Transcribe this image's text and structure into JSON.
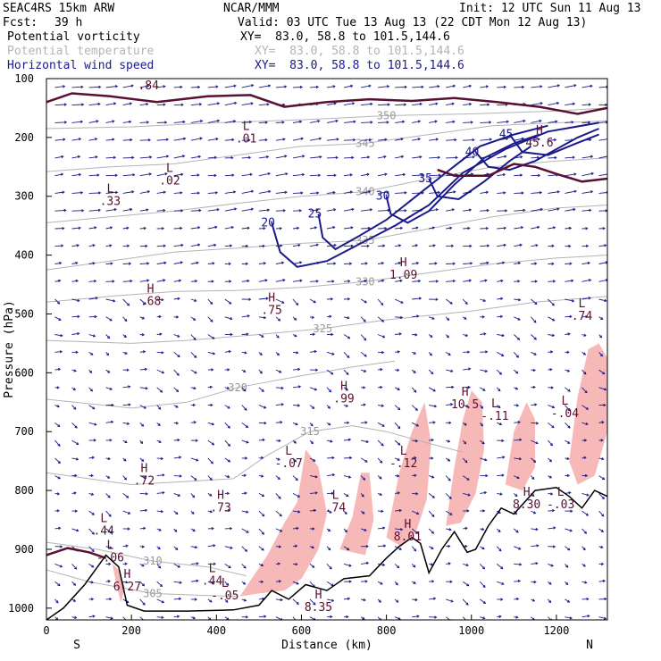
{
  "header": {
    "model": "SEAC4RS 15km ARW",
    "center": "NCAR/MMM",
    "init": "Init: 12 UTC Sun 11 Aug 13",
    "fcst_label": "Fcst:",
    "fcst_value": "39 h",
    "valid": "Valid: 03 UTC Tue 13 Aug 13 (22 CDT Mon 12 Aug 13)",
    "fields": [
      {
        "name": "Potential vorticity",
        "xy": "XY=  83.0, 58.8 to 101.5,144.6",
        "color": "#000000"
      },
      {
        "name": "Potential temperature",
        "xy": "XY=  83.0, 58.8 to 101.5,144.6",
        "color": "#b4b4b4"
      },
      {
        "name": "Horizontal wind speed",
        "xy": "XY=  83.0, 58.8 to 101.5,144.6",
        "color": "#1a1a8c"
      }
    ]
  },
  "chart_data": {
    "type": "cross-section",
    "xlabel": "Distance (km)",
    "ylabel": "Pressure (hPa)",
    "xlim": [
      0,
      1320
    ],
    "ylim": [
      1020,
      100
    ],
    "x_ticks": [
      "0",
      "200",
      "400",
      "600",
      "800",
      "1000",
      "1200"
    ],
    "y_ticks": [
      "100",
      "200",
      "300",
      "400",
      "500",
      "600",
      "700",
      "800",
      "900",
      "1000"
    ],
    "end_labels": {
      "left": "S",
      "right": "N"
    },
    "colors": {
      "wind": "#1a1a8c",
      "theta": "#b4b4b4",
      "pv_fill": "#f7b8b8",
      "pv_contour": "#5a1030",
      "terrain": "#000000"
    },
    "wind_speed_contours": [
      {
        "value": 20,
        "points": [
          [
            530,
            345
          ],
          [
            550,
            395
          ],
          [
            590,
            420
          ],
          [
            660,
            410
          ],
          [
            740,
            380
          ],
          [
            820,
            350
          ],
          [
            900,
            315
          ],
          [
            980,
            260
          ],
          [
            1080,
            220
          ],
          [
            1180,
            190
          ],
          [
            1300,
            175
          ]
        ]
      },
      {
        "value": 25,
        "points": [
          [
            640,
            330
          ],
          [
            650,
            370
          ],
          [
            680,
            390
          ],
          [
            730,
            370
          ],
          [
            800,
            340
          ],
          [
            870,
            300
          ],
          [
            940,
            260
          ],
          [
            1020,
            215
          ],
          [
            1100,
            195
          ],
          [
            1180,
            180
          ]
        ]
      },
      {
        "value": 30,
        "points": [
          [
            800,
            300
          ],
          [
            810,
            330
          ],
          [
            850,
            345
          ],
          [
            900,
            325
          ],
          [
            960,
            280
          ],
          [
            1030,
            235
          ],
          [
            1100,
            210
          ],
          [
            1160,
            195
          ]
        ]
      },
      {
        "value": 35,
        "points": [
          [
            900,
            270
          ],
          [
            920,
            300
          ],
          [
            970,
            305
          ],
          [
            1030,
            275
          ],
          [
            1090,
            240
          ],
          [
            1140,
            215
          ]
        ]
      },
      {
        "value": 40,
        "points": [
          [
            1010,
            225
          ],
          [
            1040,
            250
          ],
          [
            1090,
            255
          ],
          [
            1150,
            240
          ],
          [
            1200,
            220
          ],
          [
            1250,
            200
          ],
          [
            1300,
            185
          ]
        ]
      },
      {
        "value": 45,
        "points": [
          [
            1090,
            195
          ],
          [
            1120,
            225
          ],
          [
            1180,
            230
          ],
          [
            1240,
            212
          ],
          [
            1300,
            195
          ]
        ]
      }
    ],
    "theta_contours": [
      {
        "value": 305,
        "points": [
          [
            0,
            935
          ],
          [
            100,
            955
          ],
          [
            250,
            975
          ],
          [
            350,
            978
          ],
          [
            450,
            980
          ]
        ]
      },
      {
        "value": 310,
        "points": [
          [
            0,
            888
          ],
          [
            120,
            900
          ],
          [
            250,
            920
          ],
          [
            380,
            930
          ],
          [
            470,
            945
          ]
        ]
      },
      {
        "value": 315,
        "points": [
          [
            0,
            770
          ],
          [
            200,
            790
          ],
          [
            320,
            785
          ],
          [
            440,
            780
          ],
          [
            520,
            740
          ],
          [
            620,
            700
          ],
          [
            720,
            690
          ],
          [
            800,
            700
          ],
          [
            900,
            720
          ],
          [
            980,
            735
          ]
        ]
      },
      {
        "value": 320,
        "points": [
          [
            0,
            645
          ],
          [
            200,
            660
          ],
          [
            330,
            650
          ],
          [
            450,
            625
          ],
          [
            600,
            605
          ],
          [
            720,
            590
          ],
          [
            820,
            580
          ]
        ]
      },
      {
        "value": 325,
        "points": [
          [
            0,
            545
          ],
          [
            200,
            550
          ],
          [
            330,
            545
          ],
          [
            500,
            535
          ],
          [
            650,
            525
          ],
          [
            800,
            510
          ],
          [
            1000,
            495
          ],
          [
            1150,
            480
          ],
          [
            1320,
            470
          ]
        ]
      },
      {
        "value": 330,
        "points": [
          [
            0,
            480
          ],
          [
            150,
            470
          ],
          [
            300,
            462
          ],
          [
            450,
            460
          ],
          [
            600,
            455
          ],
          [
            750,
            445
          ],
          [
            900,
            430
          ],
          [
            1050,
            415
          ],
          [
            1200,
            405
          ],
          [
            1320,
            400
          ]
        ]
      },
      {
        "value": 335,
        "points": [
          [
            0,
            425
          ],
          [
            150,
            410
          ],
          [
            300,
            395
          ],
          [
            450,
            388
          ],
          [
            600,
            380
          ],
          [
            750,
            375
          ],
          [
            900,
            355
          ],
          [
            1050,
            335
          ],
          [
            1200,
            320
          ],
          [
            1320,
            315
          ]
        ]
      },
      {
        "value": 340,
        "points": [
          [
            0,
            345
          ],
          [
            150,
            335
          ],
          [
            300,
            325
          ],
          [
            450,
            312
          ],
          [
            600,
            300
          ],
          [
            750,
            292
          ],
          [
            900,
            270
          ],
          [
            1050,
            250
          ],
          [
            1200,
            240
          ],
          [
            1320,
            235
          ]
        ]
      },
      {
        "value": 345,
        "points": [
          [
            0,
            258
          ],
          [
            150,
            250
          ],
          [
            300,
            245
          ],
          [
            450,
            230
          ],
          [
            600,
            215
          ],
          [
            750,
            210
          ],
          [
            900,
            195
          ],
          [
            1050,
            180
          ],
          [
            1200,
            175
          ],
          [
            1320,
            172
          ]
        ]
      },
      {
        "value": 350,
        "points": [
          [
            0,
            185
          ],
          [
            200,
            182
          ],
          [
            400,
            175
          ],
          [
            600,
            170
          ],
          [
            800,
            163
          ],
          [
            1000,
            160
          ],
          [
            1200,
            155
          ],
          [
            1320,
            150
          ]
        ]
      }
    ],
    "pv_contours": [
      {
        "value": 1.5,
        "points": [
          [
            0,
            140
          ],
          [
            60,
            125
          ],
          [
            150,
            130
          ],
          [
            260,
            140
          ],
          [
            380,
            130
          ],
          [
            480,
            128
          ],
          [
            560,
            148
          ],
          [
            660,
            140
          ],
          [
            760,
            135
          ],
          [
            860,
            138
          ],
          [
            960,
            133
          ],
          [
            1060,
            140
          ],
          [
            1160,
            148
          ],
          [
            1250,
            160
          ],
          [
            1320,
            150
          ]
        ]
      },
      {
        "value": 1.5,
        "points": [
          [
            920,
            255
          ],
          [
            960,
            265
          ],
          [
            1040,
            265
          ],
          [
            1100,
            245
          ],
          [
            1150,
            250
          ],
          [
            1200,
            262
          ],
          [
            1260,
            275
          ],
          [
            1320,
            270
          ]
        ]
      },
      {
        "value": 1.5,
        "points": [
          [
            0,
            910
          ],
          [
            50,
            898
          ],
          [
            100,
            905
          ],
          [
            140,
            915
          ]
        ]
      }
    ],
    "pv_anomaly_regions": [
      {
        "points": [
          [
            455,
            980
          ],
          [
            520,
            910
          ],
          [
            560,
            855
          ],
          [
            590,
            820
          ],
          [
            610,
            730
          ],
          [
            640,
            760
          ],
          [
            660,
            840
          ],
          [
            640,
            900
          ],
          [
            600,
            950
          ],
          [
            560,
            970
          ],
          [
            500,
            975
          ]
        ]
      },
      {
        "points": [
          [
            690,
            900
          ],
          [
            720,
            845
          ],
          [
            740,
            770
          ],
          [
            760,
            770
          ],
          [
            770,
            850
          ],
          [
            750,
            910
          ]
        ]
      },
      {
        "points": [
          [
            800,
            880
          ],
          [
            830,
            770
          ],
          [
            860,
            700
          ],
          [
            890,
            650
          ],
          [
            905,
            720
          ],
          [
            895,
            815
          ],
          [
            870,
            870
          ],
          [
            835,
            895
          ]
        ]
      },
      {
        "points": [
          [
            940,
            860
          ],
          [
            960,
            760
          ],
          [
            980,
            680
          ],
          [
            1000,
            630
          ],
          [
            1025,
            650
          ],
          [
            1030,
            730
          ],
          [
            1010,
            805
          ],
          [
            975,
            855
          ]
        ]
      },
      {
        "points": [
          [
            1080,
            790
          ],
          [
            1100,
            700
          ],
          [
            1130,
            650
          ],
          [
            1150,
            680
          ],
          [
            1150,
            760
          ],
          [
            1120,
            800
          ]
        ]
      },
      {
        "points": [
          [
            1230,
            750
          ],
          [
            1250,
            640
          ],
          [
            1275,
            560
          ],
          [
            1300,
            550
          ],
          [
            1320,
            575
          ],
          [
            1320,
            700
          ],
          [
            1290,
            775
          ],
          [
            1250,
            790
          ]
        ]
      },
      {
        "points": [
          [
            155,
            925
          ],
          [
            170,
            935
          ],
          [
            185,
            965
          ],
          [
            175,
            990
          ],
          [
            165,
            960
          ]
        ]
      }
    ],
    "terrain": [
      [
        0,
        1020
      ],
      [
        40,
        1000
      ],
      [
        90,
        960
      ],
      [
        140,
        910
      ],
      [
        170,
        930
      ],
      [
        190,
        995
      ],
      [
        230,
        1005
      ],
      [
        330,
        1005
      ],
      [
        440,
        1003
      ],
      [
        500,
        995
      ],
      [
        530,
        970
      ],
      [
        570,
        985
      ],
      [
        610,
        960
      ],
      [
        660,
        970
      ],
      [
        700,
        950
      ],
      [
        760,
        945
      ],
      [
        800,
        915
      ],
      [
        830,
        895
      ],
      [
        860,
        880
      ],
      [
        880,
        890
      ],
      [
        900,
        940
      ],
      [
        930,
        900
      ],
      [
        960,
        870
      ],
      [
        990,
        905
      ],
      [
        1010,
        900
      ],
      [
        1040,
        860
      ],
      [
        1070,
        830
      ],
      [
        1100,
        840
      ],
      [
        1150,
        800
      ],
      [
        1200,
        795
      ],
      [
        1230,
        810
      ],
      [
        1260,
        830
      ],
      [
        1290,
        800
      ],
      [
        1320,
        810
      ]
    ],
    "extrema_labels": [
      {
        "symbol": "H",
        "value": ".84",
        "x": 240,
        "y": 103
      },
      {
        "symbol": "L",
        "value": ".01",
        "x": 470,
        "y": 193
      },
      {
        "symbol": "L",
        "value": ".02",
        "x": 290,
        "y": 265
      },
      {
        "symbol": "L",
        "value": ".33",
        "x": 150,
        "y": 300
      },
      {
        "symbol": "H",
        "value": "45.6",
        "x": 1160,
        "y": 200
      },
      {
        "symbol": "H",
        "value": "1.09",
        "x": 840,
        "y": 425
      },
      {
        "symbol": "H",
        "value": ".68",
        "x": 245,
        "y": 470
      },
      {
        "symbol": "H",
        "value": ".75",
        "x": 530,
        "y": 485
      },
      {
        "symbol": "H",
        "value": ".99",
        "x": 700,
        "y": 635
      },
      {
        "symbol": "H",
        "value": "10.5",
        "x": 985,
        "y": 645
      },
      {
        "symbol": "L",
        "value": "-.11",
        "x": 1055,
        "y": 665
      },
      {
        "symbol": "L",
        "value": "-.04",
        "x": 1220,
        "y": 660
      },
      {
        "symbol": "L",
        "value": ".74",
        "x": 1260,
        "y": 495
      },
      {
        "symbol": "L",
        "value": "-.07",
        "x": 570,
        "y": 745
      },
      {
        "symbol": "L",
        "value": "-.12",
        "x": 840,
        "y": 745
      },
      {
        "symbol": "H",
        "value": ".72",
        "x": 230,
        "y": 775
      },
      {
        "symbol": "H",
        "value": ".73",
        "x": 410,
        "y": 820
      },
      {
        "symbol": "L",
        "value": ".74",
        "x": 680,
        "y": 820
      },
      {
        "symbol": "L",
        "value": ".44",
        "x": 135,
        "y": 860
      },
      {
        "symbol": "L",
        "value": "-.06",
        "x": 150,
        "y": 905
      },
      {
        "symbol": "H",
        "value": "6.27",
        "x": 190,
        "y": 955
      },
      {
        "symbol": "L",
        "value": ".44",
        "x": 390,
        "y": 945
      },
      {
        "symbol": "L",
        "value": "-.05",
        "x": 420,
        "y": 970
      },
      {
        "symbol": "H",
        "value": "8.01",
        "x": 850,
        "y": 870
      },
      {
        "symbol": "H",
        "value": "8.35",
        "x": 640,
        "y": 990
      },
      {
        "symbol": "H",
        "value": "8.30",
        "x": 1130,
        "y": 815
      },
      {
        "symbol": "L",
        "value": "-.03",
        "x": 1210,
        "y": 815
      }
    ]
  }
}
